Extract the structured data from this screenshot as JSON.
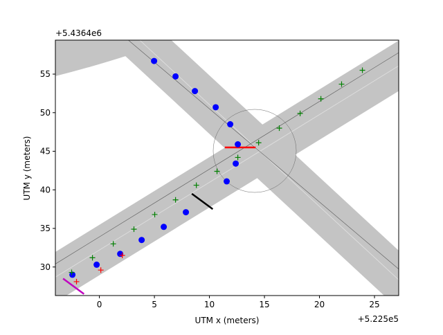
{
  "chart_data": {
    "type": "scatter",
    "xlabel": "UTM x (meters)",
    "ylabel": "UTM y (meters)",
    "x_offset_label": "+5.225e5",
    "y_offset_label": "+5.4364e6",
    "xlim": [
      -4,
      27.2
    ],
    "ylim": [
      26.3,
      59.4
    ],
    "xticks": [
      0,
      5,
      10,
      15,
      20,
      25
    ],
    "yticks": [
      30,
      35,
      40,
      45,
      50,
      55
    ],
    "series": [
      {
        "marker": "circle",
        "color": "#0000ff",
        "x": [
          -2.45,
          -0.25,
          1.89,
          3.84,
          5.85,
          7.86,
          11.57,
          12.39,
          12.58,
          11.89,
          10.57,
          8.68,
          6.92,
          4.97
        ],
        "values": [
          29.0,
          30.3,
          31.7,
          33.5,
          35.2,
          37.1,
          41.1,
          43.4,
          45.9,
          48.5,
          50.7,
          52.8,
          54.7,
          56.7
        ]
      },
      {
        "marker": "plus",
        "color": "#008000",
        "x": [
          -2.52,
          -0.63,
          1.26,
          3.14,
          5.03,
          6.92,
          8.81,
          10.69,
          12.58,
          14.47,
          16.35,
          18.24,
          20.13,
          22.01,
          23.9
        ],
        "values": [
          29.3,
          31.2,
          33.0,
          34.9,
          36.8,
          38.7,
          40.6,
          42.4,
          44.2,
          46.1,
          48.0,
          49.9,
          51.8,
          53.7,
          55.5
        ]
      },
      {
        "marker": "plus",
        "color": "#ff0000",
        "x": [
          -2.08,
          0.13,
          2.08
        ],
        "values": [
          28.1,
          29.6,
          31.5
        ]
      }
    ],
    "segments": [
      {
        "color": "#ff0000",
        "x": [
          11.4,
          14.2
        ],
        "values": [
          45.5,
          45.5
        ]
      },
      {
        "color": "#000000",
        "x": [
          8.4,
          10.3
        ],
        "values": [
          39.5,
          37.5
        ]
      },
      {
        "color": "#c000c0",
        "x": [
          -3.3,
          -1.4
        ],
        "values": [
          28.5,
          26.5
        ]
      }
    ]
  }
}
